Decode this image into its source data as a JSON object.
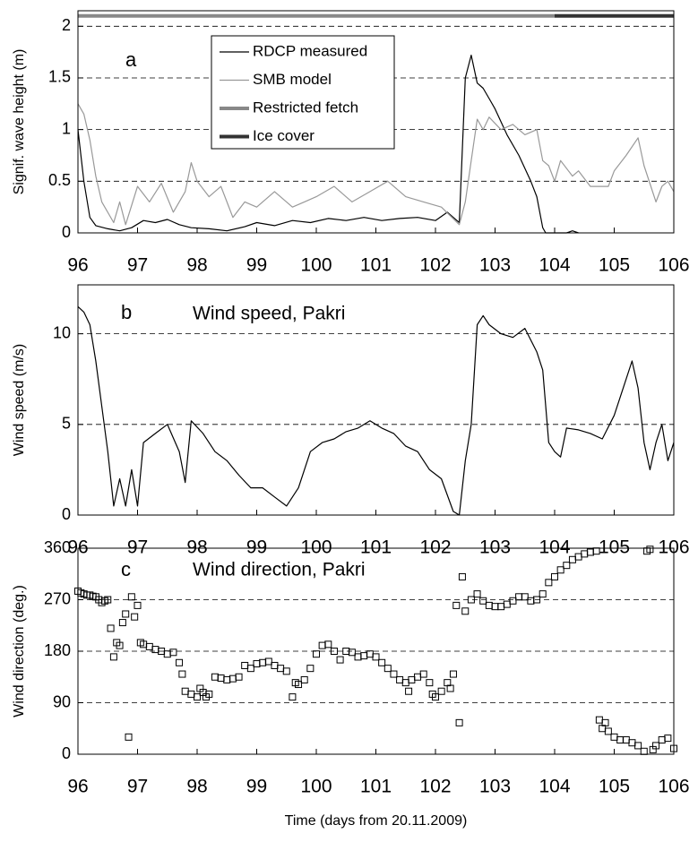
{
  "chart_data": [
    {
      "type": "line",
      "ylabel": "Signif. wave height (m)",
      "annotations": [
        "a"
      ],
      "legend": "upper center",
      "xlim": [
        96,
        106
      ],
      "xticks": [
        96,
        97,
        98,
        99,
        100,
        101,
        102,
        103,
        104,
        105,
        106
      ],
      "ylim": [
        0,
        2.15
      ],
      "yticks": [
        0,
        0.5,
        1,
        1.5,
        2
      ],
      "grid": true,
      "series": [
        {
          "name": "RDCP measured",
          "color": "#000000",
          "linewidth": 1.2,
          "x": [
            96,
            96.1,
            96.2,
            96.3,
            96.5,
            96.7,
            96.9,
            97.1,
            97.3,
            97.5,
            97.7,
            97.9,
            98.2,
            98.5,
            98.8,
            99.0,
            99.3,
            99.6,
            99.9,
            100.2,
            100.5,
            100.8,
            101.1,
            101.4,
            101.7,
            102.0,
            102.2,
            102.4,
            102.5,
            102.6,
            102.7,
            102.8,
            102.9,
            103.0,
            103.2,
            103.4,
            103.6,
            103.7,
            103.8,
            103.85,
            104.2,
            104.3,
            104.4
          ],
          "values": [
            1.0,
            0.5,
            0.15,
            0.07,
            0.04,
            0.02,
            0.05,
            0.12,
            0.1,
            0.13,
            0.08,
            0.05,
            0.04,
            0.02,
            0.06,
            0.1,
            0.07,
            0.12,
            0.1,
            0.14,
            0.12,
            0.15,
            0.12,
            0.14,
            0.15,
            0.12,
            0.2,
            0.1,
            1.5,
            1.72,
            1.45,
            1.4,
            1.3,
            1.2,
            0.95,
            0.75,
            0.5,
            0.35,
            0.05,
            0,
            0,
            0.02,
            0
          ]
        },
        {
          "name": "SMB model",
          "color": "#999999",
          "linewidth": 1.2,
          "x": [
            96,
            96.1,
            96.2,
            96.3,
            96.4,
            96.6,
            96.7,
            96.8,
            97.0,
            97.2,
            97.4,
            97.6,
            97.8,
            97.9,
            98.0,
            98.2,
            98.4,
            98.6,
            98.8,
            99.0,
            99.3,
            99.6,
            99.8,
            100.0,
            100.3,
            100.6,
            100.9,
            101.2,
            101.5,
            101.8,
            102.1,
            102.4,
            102.5,
            102.6,
            102.7,
            102.8,
            102.9,
            103.1,
            103.3,
            103.5,
            103.7,
            103.8,
            103.9,
            104.0,
            104.1,
            104.3,
            104.4,
            104.6,
            104.9,
            105.0,
            105.2,
            105.4,
            105.5,
            105.7,
            105.8,
            105.9,
            106.0
          ],
          "values": [
            1.25,
            1.15,
            0.9,
            0.55,
            0.3,
            0.1,
            0.3,
            0.08,
            0.45,
            0.3,
            0.48,
            0.2,
            0.4,
            0.68,
            0.5,
            0.35,
            0.45,
            0.15,
            0.3,
            0.25,
            0.4,
            0.25,
            0.3,
            0.35,
            0.45,
            0.3,
            0.4,
            0.5,
            0.35,
            0.3,
            0.25,
            0.08,
            0.3,
            0.7,
            1.1,
            1.0,
            1.12,
            1.0,
            1.05,
            0.95,
            1.0,
            0.7,
            0.65,
            0.5,
            0.7,
            0.55,
            0.6,
            0.45,
            0.45,
            0.6,
            0.75,
            0.92,
            0.65,
            0.3,
            0.45,
            0.5,
            0.4
          ]
        },
        {
          "name": "Restricted fetch",
          "color": "#888888",
          "linewidth": 4,
          "x": [
            96,
            104
          ],
          "values": [
            2.1,
            2.1
          ]
        },
        {
          "name": "Ice cover",
          "color": "#333333",
          "linewidth": 4,
          "x": [
            104,
            106
          ],
          "values": [
            2.1,
            2.1
          ]
        }
      ]
    },
    {
      "type": "line",
      "ylabel": "Wind speed (m/s)",
      "annotations": [
        "b",
        "Wind speed, Pakri"
      ],
      "color": "#000000",
      "linewidth": 1.2,
      "xlim": [
        96,
        106
      ],
      "xticks": [
        96,
        97,
        98,
        99,
        100,
        101,
        102,
        103,
        104,
        105,
        106
      ],
      "ylim": [
        0,
        12.7
      ],
      "yticks": [
        0,
        5,
        10
      ],
      "grid": true,
      "x": [
        96,
        96.1,
        96.2,
        96.3,
        96.4,
        96.5,
        96.6,
        96.7,
        96.8,
        96.9,
        97.0,
        97.1,
        97.3,
        97.5,
        97.7,
        97.8,
        97.9,
        98.1,
        98.3,
        98.5,
        98.7,
        98.9,
        99.1,
        99.3,
        99.5,
        99.7,
        99.9,
        100.1,
        100.3,
        100.5,
        100.7,
        100.9,
        101.1,
        101.3,
        101.5,
        101.7,
        101.9,
        102.1,
        102.3,
        102.4,
        102.5,
        102.6,
        102.7,
        102.8,
        102.9,
        103.1,
        103.3,
        103.5,
        103.7,
        103.8,
        103.9,
        104.0,
        104.1,
        104.2,
        104.4,
        104.6,
        104.8,
        105.0,
        105.2,
        105.3,
        105.4,
        105.5,
        105.6,
        105.7,
        105.8,
        105.9,
        106.0
      ],
      "values": [
        11.5,
        11.2,
        10.5,
        8.5,
        6,
        3.5,
        0.5,
        2,
        0.5,
        2.5,
        0.5,
        4,
        4.5,
        5,
        3.5,
        1.8,
        5.2,
        4.5,
        3.5,
        3,
        2.2,
        1.5,
        1.5,
        1,
        0.5,
        1.5,
        3.5,
        4,
        4.2,
        4.6,
        4.8,
        5.2,
        4.8,
        4.5,
        3.8,
        3.5,
        2.5,
        2,
        0.2,
        0,
        3,
        5,
        10.5,
        11,
        10.5,
        10,
        9.8,
        10.3,
        9,
        8,
        4,
        3.5,
        3.2,
        4.8,
        4.7,
        4.5,
        4.2,
        5.5,
        7.5,
        8.5,
        7,
        4,
        2.5,
        4,
        5,
        3,
        4
      ]
    },
    {
      "type": "scatter",
      "ylabel": "Wind direction (deg.)",
      "xlabel": "Time (days from 20.11.2009)",
      "annotations": [
        "c",
        "Wind direction, Pakri"
      ],
      "color": "#000000",
      "xlim": [
        96,
        106
      ],
      "xticks": [
        96,
        97,
        98,
        99,
        100,
        101,
        102,
        103,
        104,
        105,
        106
      ],
      "ylim": [
        0,
        360
      ],
      "yticks": [
        0,
        90,
        180,
        270,
        360
      ],
      "grid": true,
      "x": [
        96.0,
        96.05,
        96.1,
        96.15,
        96.2,
        96.25,
        96.3,
        96.35,
        96.4,
        96.45,
        96.5,
        96.55,
        96.6,
        96.65,
        96.7,
        96.75,
        96.8,
        96.85,
        96.9,
        96.95,
        97.0,
        97.05,
        97.1,
        97.2,
        97.3,
        97.4,
        97.5,
        97.6,
        97.7,
        97.75,
        97.8,
        97.9,
        98.0,
        98.05,
        98.1,
        98.15,
        98.2,
        98.3,
        98.4,
        98.5,
        98.6,
        98.7,
        98.8,
        98.9,
        99.0,
        99.1,
        99.2,
        99.3,
        99.4,
        99.5,
        99.6,
        99.65,
        99.7,
        99.8,
        99.9,
        100.0,
        100.1,
        100.2,
        100.3,
        100.4,
        100.5,
        100.6,
        100.7,
        100.8,
        100.9,
        101.0,
        101.1,
        101.2,
        101.3,
        101.4,
        101.5,
        101.55,
        101.6,
        101.7,
        101.8,
        101.9,
        101.95,
        102.0,
        102.1,
        102.2,
        102.25,
        102.3,
        102.35,
        102.4,
        102.45,
        102.5,
        102.6,
        102.7,
        102.8,
        102.9,
        103.0,
        103.1,
        103.2,
        103.3,
        103.4,
        103.5,
        103.6,
        103.7,
        103.8,
        103.9,
        104.0,
        104.1,
        104.2,
        104.3,
        104.4,
        104.5,
        104.6,
        104.7,
        104.75,
        104.8,
        104.85,
        104.9,
        105.0,
        105.1,
        105.2,
        105.3,
        105.4,
        105.5,
        105.55,
        105.6,
        105.65,
        105.7,
        105.8,
        105.9,
        106.0
      ],
      "values": [
        285,
        282,
        280,
        278,
        278,
        276,
        275,
        270,
        265,
        268,
        270,
        220,
        170,
        195,
        190,
        230,
        245,
        30,
        275,
        240,
        260,
        195,
        192,
        188,
        183,
        180,
        175,
        178,
        160,
        140,
        110,
        105,
        100,
        115,
        108,
        100,
        105,
        135,
        133,
        130,
        132,
        135,
        155,
        150,
        158,
        160,
        162,
        155,
        150,
        145,
        100,
        125,
        122,
        130,
        150,
        175,
        190,
        192,
        180,
        165,
        180,
        178,
        170,
        172,
        175,
        170,
        160,
        150,
        140,
        130,
        125,
        110,
        130,
        135,
        140,
        125,
        105,
        100,
        110,
        125,
        115,
        140,
        260,
        55,
        310,
        250,
        270,
        280,
        268,
        260,
        258,
        258,
        262,
        268,
        275,
        275,
        268,
        270,
        280,
        300,
        310,
        322,
        330,
        340,
        345,
        350,
        353,
        355,
        60,
        45,
        55,
        40,
        30,
        25,
        25,
        20,
        15,
        5,
        355,
        358,
        8,
        15,
        25,
        28,
        10
      ]
    }
  ]
}
